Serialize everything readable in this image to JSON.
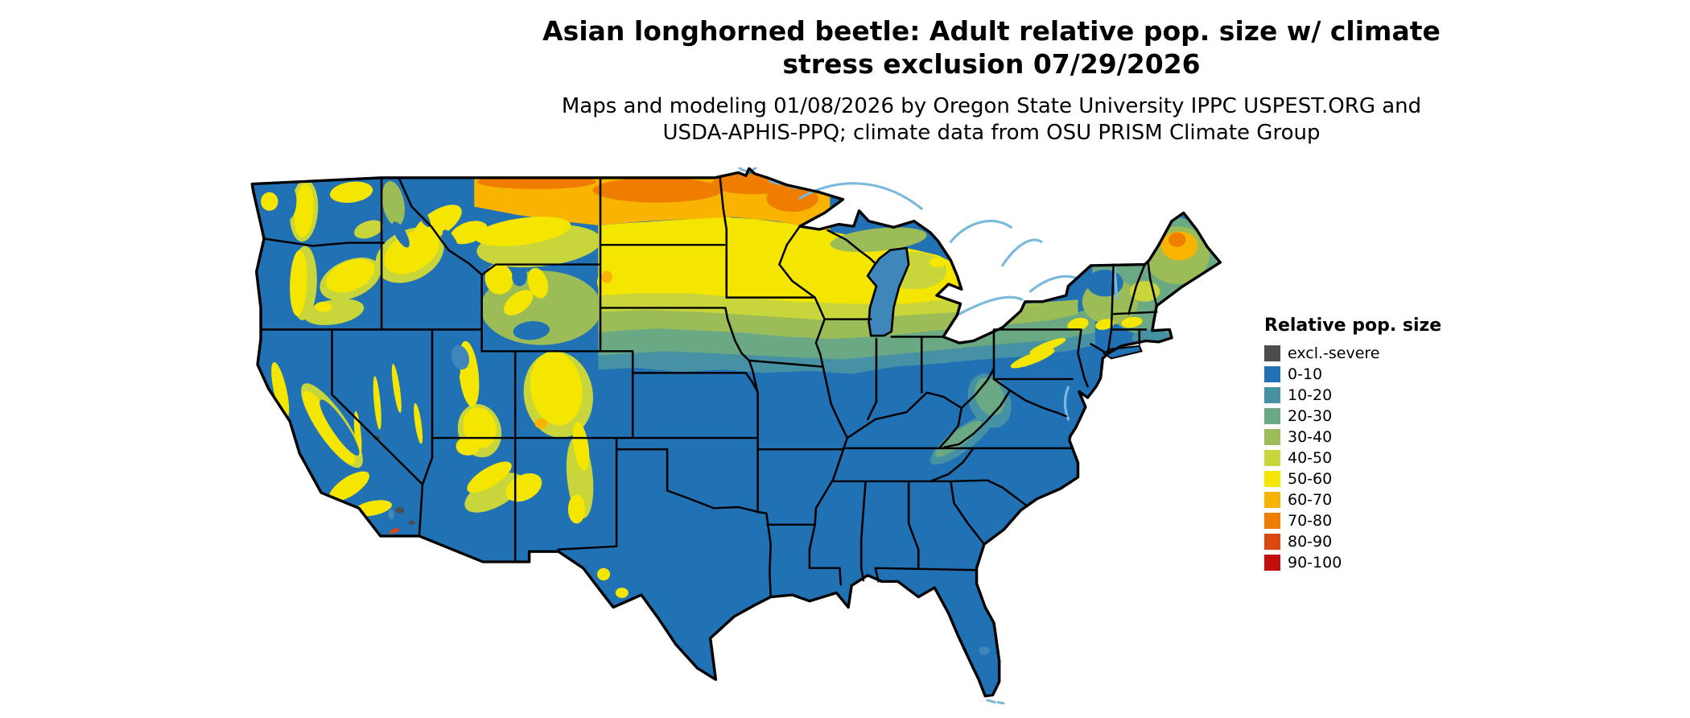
{
  "page": {
    "background": "#ffffff"
  },
  "title": {
    "line1": "Asian longhorned beetle: Adult relative pop. size w/ climate",
    "line2": "stress exclusion 07/29/2026"
  },
  "subtitle": {
    "line1": "Maps and modeling 01/08/2026 by Oregon State University IPPC USPEST.ORG and",
    "line2": "USDA-APHIS-PPQ; climate data from OSU PRISM Climate Group"
  },
  "legend": {
    "title": "Relative pop. size",
    "items": [
      {
        "key": "excl",
        "label": "excl.-severe",
        "color": "#4d4d4d"
      },
      {
        "key": "b0",
        "label": "0-10",
        "color": "#2171b5"
      },
      {
        "key": "b10",
        "label": "10-20",
        "color": "#4691a4"
      },
      {
        "key": "b20",
        "label": "20-30",
        "color": "#6aa984"
      },
      {
        "key": "b30",
        "label": "30-40",
        "color": "#9cbc57"
      },
      {
        "key": "b40",
        "label": "40-50",
        "color": "#c8d53b"
      },
      {
        "key": "b50",
        "label": "50-60",
        "color": "#f5e600"
      },
      {
        "key": "b60",
        "label": "60-70",
        "color": "#f8b400"
      },
      {
        "key": "b70",
        "label": "70-80",
        "color": "#ef7d00"
      },
      {
        "key": "b80",
        "label": "80-90",
        "color": "#dc4810"
      },
      {
        "key": "b90",
        "label": "90-100",
        "color": "#c30c0c"
      }
    ]
  },
  "map": {
    "area": "Contiguous United States",
    "colors": {
      "border": "#000000",
      "water": "#3f86ba",
      "waterline": "#7ab8dc"
    }
  }
}
